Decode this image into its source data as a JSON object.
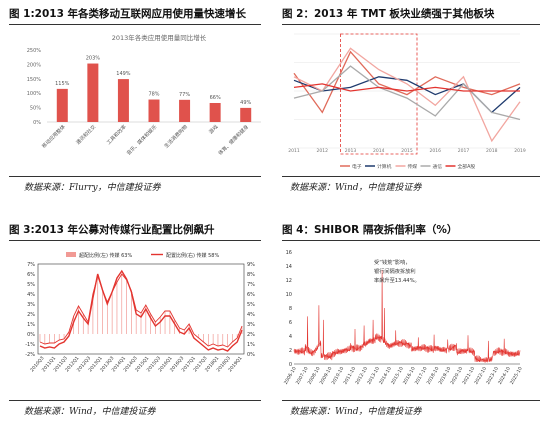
{
  "fig1": {
    "title": "图 1:2013 年各类移动互联网应用使用量快速增长",
    "source": "数据来源：Flurry，中信建投证券",
    "chart_data": {
      "type": "bar",
      "title": "2013年各类应用使用量同比增长",
      "categories": [
        "移动应用整体",
        "通讯和社交",
        "工具和效率",
        "音乐、媒体和娱乐",
        "生活消费购物",
        "游戏",
        "体育、健康和健身"
      ],
      "values": [
        115,
        203,
        149,
        78,
        77,
        66,
        49
      ],
      "value_labels": [
        "115%",
        "203%",
        "149%",
        "78%",
        "77%",
        "66%",
        "49%"
      ],
      "yticks": [
        "250%",
        "200%",
        "150%",
        "100%",
        "50%",
        "0%"
      ],
      "ylim": [
        0,
        250
      ],
      "color": "#e0524c"
    }
  },
  "fig2": {
    "title": "图 2：2013 年 TMT 板块业绩强于其他板块",
    "source": "数据来源：Wind，中信建投证券",
    "highlight": [
      "2013",
      "2015"
    ],
    "chart_data": {
      "type": "line",
      "x": [
        "2011",
        "2012",
        "2013",
        "2014",
        "2015",
        "2016",
        "2017",
        "2018",
        "2019"
      ],
      "series": [
        {
          "name": "电子",
          "color": "#e06a5a",
          "values": [
            25,
            -30,
            55,
            10,
            -5,
            20,
            5,
            -5,
            10
          ]
        },
        {
          "name": "计算机",
          "color": "#1f3b6e",
          "values": [
            15,
            0,
            5,
            20,
            15,
            -5,
            10,
            -30,
            5
          ]
        },
        {
          "name": "传媒",
          "color": "#f2a6a0",
          "values": [
            20,
            0,
            60,
            30,
            10,
            -20,
            20,
            -70,
            -15
          ]
        },
        {
          "name": "通信",
          "color": "#aaaaaa",
          "values": [
            -10,
            0,
            35,
            5,
            -10,
            -35,
            10,
            -30,
            -40
          ]
        },
        {
          "name": "全部A股",
          "color": "#e3342f",
          "values": [
            5,
            10,
            0,
            5,
            0,
            5,
            0,
            0,
            0
          ]
        }
      ],
      "ylim": [
        -80,
        80
      ]
    }
  },
  "fig3": {
    "title": "图 3:2013 年公募对传媒行业配置比例飙升",
    "source": "数据来源：Wind，中信建投证券",
    "chart_data": {
      "type": "line",
      "legend": [
        "超配比例(左) 传媒 63%",
        "配置比例(右) 传媒 58%"
      ],
      "left_ticks": [
        "7%",
        "6%",
        "5%",
        "4%",
        "3%",
        "2%",
        "1%",
        "0%",
        "-1%",
        "-2%"
      ],
      "right_ticks": [
        "9%",
        "8%",
        "7%",
        "6%",
        "5%",
        "4%",
        "3%",
        "2%",
        "1%",
        "0%"
      ],
      "x_ticks": [
        "2010Q3",
        "2011Q1",
        "2011Q3",
        "2012Q1",
        "2012Q3",
        "2013Q1",
        "2013Q3",
        "2014Q1",
        "2014Q3",
        "2015Q1",
        "2015Q3",
        "2016Q1",
        "2016Q3",
        "2017Q1",
        "2017Q3",
        "2018Q1",
        "2018Q3",
        "2019Q1"
      ],
      "series": [
        {
          "name": "超配比例(左)",
          "color": "#e3342f",
          "values": [
            -0.8,
            -1.0,
            -0.9,
            -0.9,
            -0.6,
            -0.5,
            0.2,
            1.8,
            2.8,
            2.0,
            1.2,
            4.0,
            5.8,
            4.4,
            3.2,
            4.2,
            5.2,
            6.0,
            5.4,
            4.3,
            2.4,
            2.1,
            2.9,
            2.0,
            1.2,
            1.7,
            2.3,
            2.3,
            1.4,
            0.6,
            0.4,
            1.0,
            0.0,
            -0.4,
            -0.8,
            -1.2,
            -1.0,
            -1.2,
            -1.1,
            -1.3,
            -0.8,
            -0.4,
            0.8
          ]
        },
        {
          "name": "配置比例(右)",
          "color": "#e3342f",
          "values": [
            0.8,
            0.6,
            0.7,
            0.6,
            1.0,
            1.2,
            1.8,
            3.2,
            4.3,
            3.6,
            3.0,
            5.6,
            8.0,
            6.4,
            5.0,
            6.2,
            7.6,
            8.3,
            7.5,
            6.2,
            4.0,
            3.7,
            4.5,
            3.6,
            2.8,
            3.2,
            3.8,
            3.8,
            3.0,
            2.2,
            2.0,
            2.6,
            1.6,
            1.2,
            0.8,
            0.4,
            0.6,
            0.4,
            0.5,
            0.3,
            0.8,
            1.2,
            2.4
          ]
        }
      ],
      "ylim_left": [
        -2,
        7
      ],
      "ylim_right": [
        0,
        9
      ]
    }
  },
  "fig4": {
    "title": "图 4：SHIBOR 隔夜拆借利率（%）",
    "source": "数据来源：Wind，中信建投证券",
    "annotation": [
      "受“钱荒”影响，",
      "银行间隔夜拆放利",
      "率飙升至13.44%。"
    ],
    "chart_data": {
      "type": "line",
      "color": "#e3342f",
      "yticks": [
        "16",
        "14",
        "12",
        "10",
        "8",
        "6",
        "4",
        "2",
        "0"
      ],
      "ylim": [
        0,
        16
      ],
      "x_ticks": [
        "2006-10",
        "2007-10",
        "2008-10",
        "2009-10",
        "2010-10",
        "2011-10",
        "2012-10",
        "2013-10",
        "2014-10",
        "2015-10",
        "2016-10",
        "2017-10",
        "2018-10",
        "2019-10",
        "2020-10",
        "2021-10",
        "2022-10",
        "2023-10",
        "2024-10",
        "2025-10"
      ],
      "spike": {
        "label": "13.44%",
        "value": 13.44
      }
    }
  }
}
